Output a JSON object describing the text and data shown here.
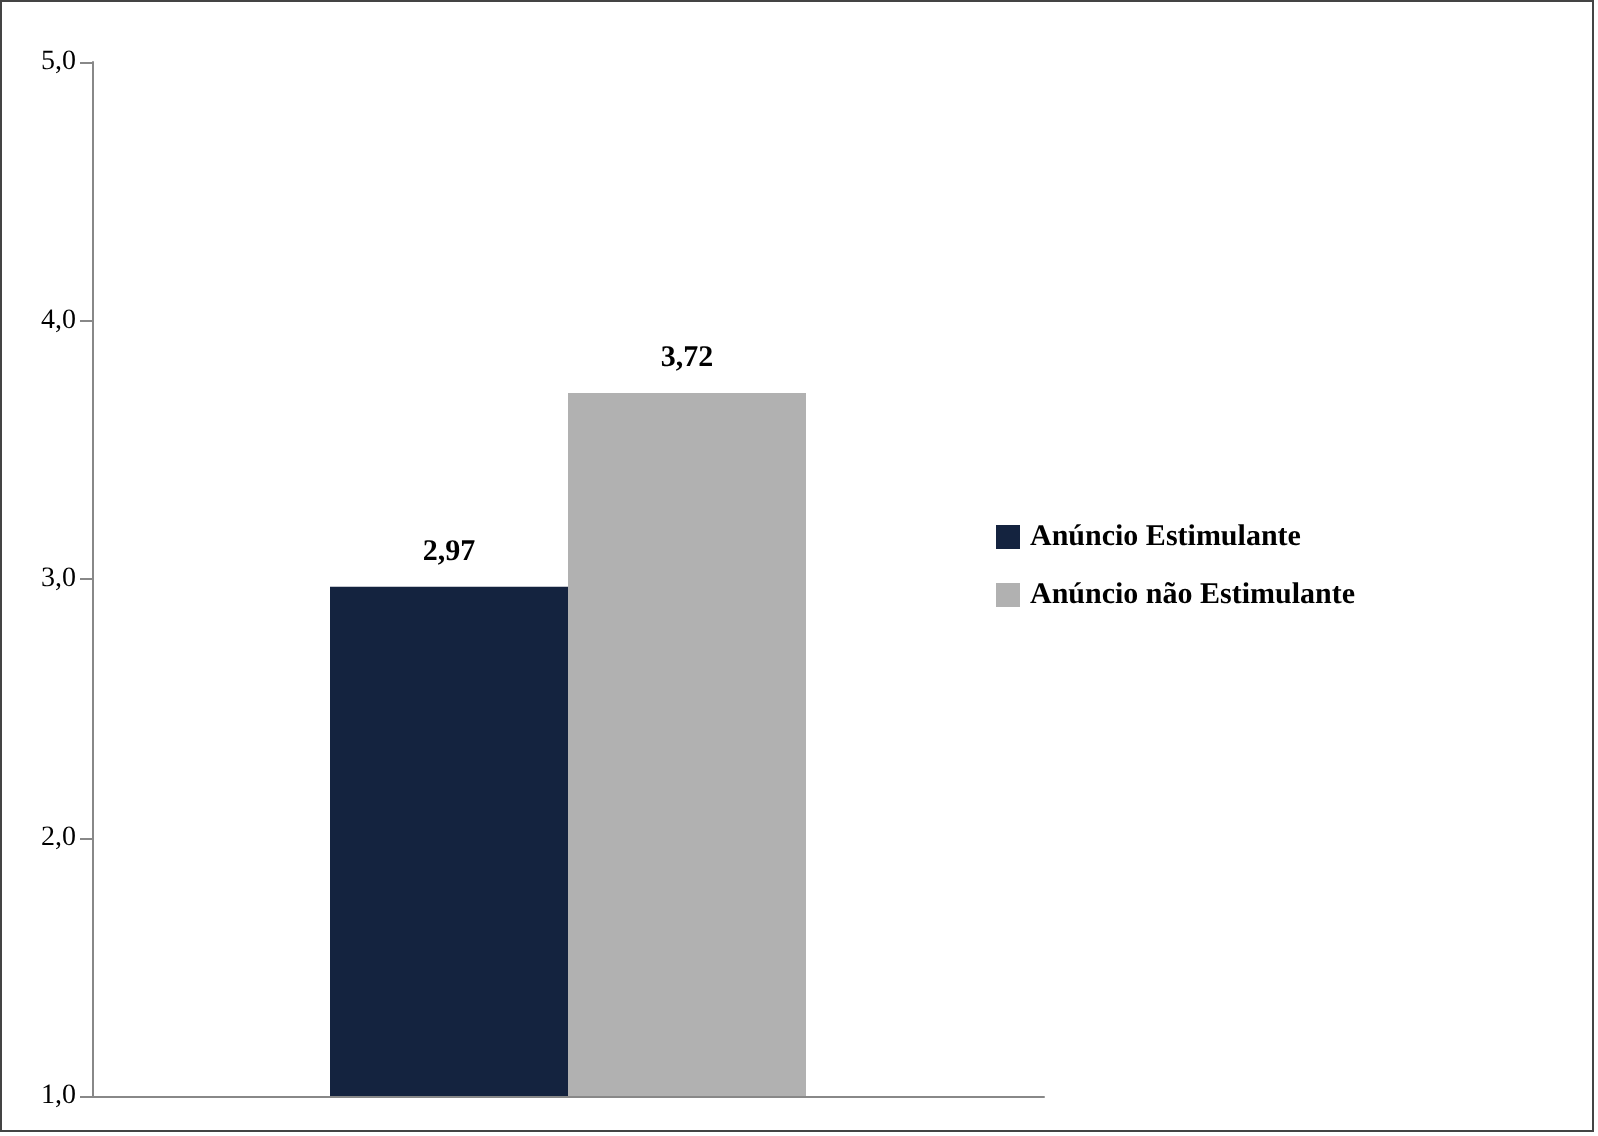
{
  "chart_data": {
    "type": "bar",
    "categories": [
      null
    ],
    "series": [
      {
        "name": "Anúncio Estimulante",
        "color": "#14233f",
        "values": [
          2.97
        ],
        "value_labels": [
          "2,97"
        ]
      },
      {
        "name": "Anúncio não Estimulante",
        "color": "#b1b1b1",
        "values": [
          3.72
        ],
        "value_labels": [
          "3,72"
        ]
      }
    ],
    "ylim": [
      1,
      5
    ],
    "yticks": [
      {
        "value": 1,
        "label": "1,0"
      },
      {
        "value": 2,
        "label": "2,0"
      },
      {
        "value": 3,
        "label": "3,0"
      },
      {
        "value": 4,
        "label": "4,0"
      },
      {
        "value": 5,
        "label": "5,0"
      }
    ],
    "grid": false,
    "legend": "right"
  }
}
